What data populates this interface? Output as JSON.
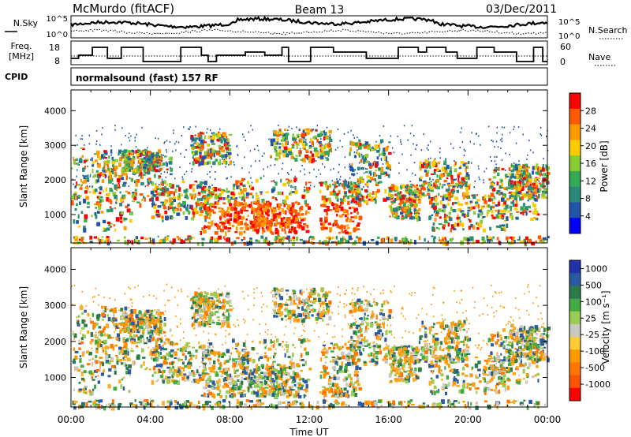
{
  "header": {
    "station": "McMurdo (fitACF)",
    "beam": "Beam 13",
    "date": "03/Dec/2011"
  },
  "top_panels": {
    "nsky_label": "N.Sky",
    "nsky_ticks": [
      "10^5",
      "10^0"
    ],
    "nsearch_label": "N.Search",
    "nsearch_ticks": [
      "10^5",
      "10^0"
    ],
    "freq_label_1": "Freq.",
    "freq_label_2": "[MHz]",
    "freq_ticks": [
      "18",
      "8"
    ],
    "nave_label": "Nave",
    "nave_ticks": [
      "60",
      "0"
    ],
    "cpid_label": "CPID",
    "cpid_text": "normalsound (fast) 157 RF"
  },
  "chart_data": [
    {
      "type": "heatmap",
      "name": "power",
      "ylabel": "Slant Range [km]",
      "ylim": [
        180,
        4600
      ],
      "yticks": [
        "4000",
        "3000",
        "2000",
        "1000"
      ],
      "xlim": [
        "00:00",
        "24:00"
      ],
      "colorbar_label": "Power [dB]",
      "colorbar_ticks": [
        "28",
        "24",
        "20",
        "16",
        "12",
        "8",
        "4"
      ],
      "colorbar_colors": [
        "#ff0000",
        "#ff5a00",
        "#ff9900",
        "#ffcc00",
        "#88cc33",
        "#33aa55",
        "#2a8a7a",
        "#2255aa",
        "#0000ff"
      ]
    },
    {
      "type": "heatmap",
      "name": "velocity",
      "ylabel": "Slant Range [km]",
      "ylim": [
        180,
        4600
      ],
      "yticks": [
        "4000",
        "3000",
        "2000",
        "1000"
      ],
      "xlim": [
        "00:00",
        "24:00"
      ],
      "colorbar_label": "Velocity [m s⁻¹]",
      "colorbar_ticks": [
        "1000",
        "500",
        "100",
        "25",
        "-25",
        "-100",
        "-500",
        "-1000"
      ],
      "colorbar_colors": [
        "#2233aa",
        "#2a5aa0",
        "#2a7a4a",
        "#44aa44",
        "#99cc55",
        "#c8c8c0",
        "#ffcc33",
        "#ff9900",
        "#ff7700",
        "#ff5500",
        "#ff0000"
      ],
      "xlabel": "Time UT",
      "xticks": [
        "00:00",
        "04:00",
        "08:00",
        "12:00",
        "16:00",
        "20:00",
        "00:00"
      ]
    }
  ]
}
